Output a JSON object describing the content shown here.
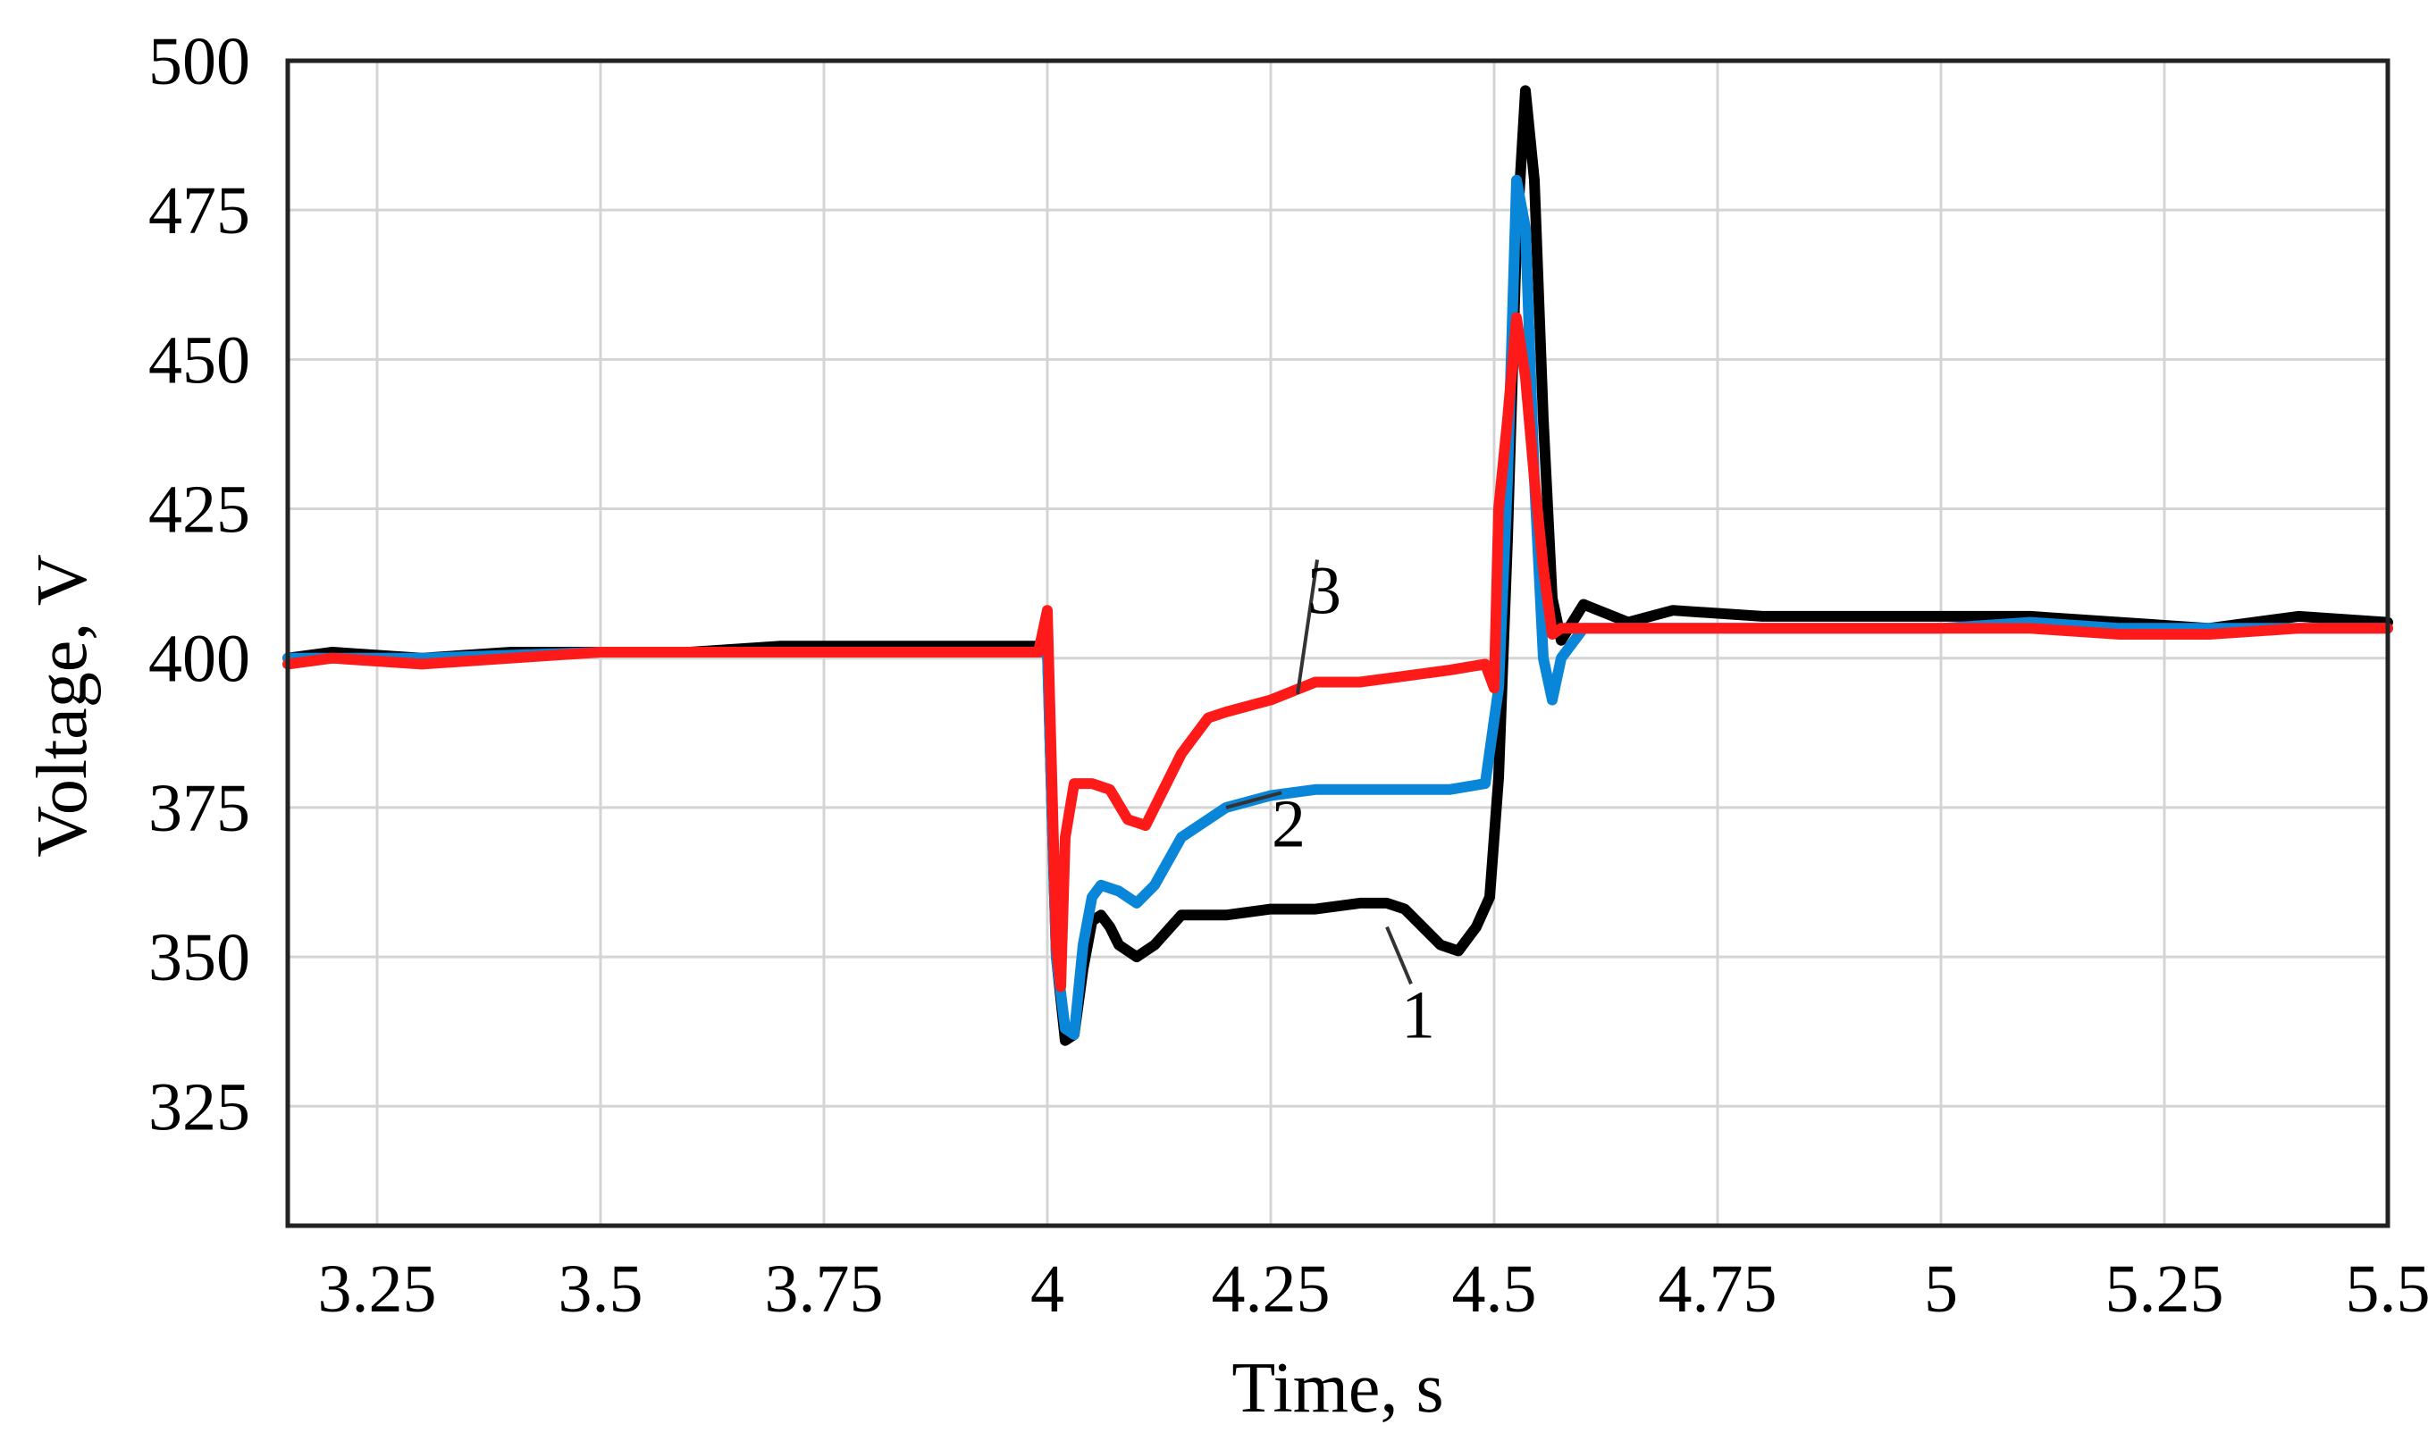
{
  "chart_data": {
    "type": "line",
    "title": "",
    "xlabel": "Time, s",
    "ylabel": "Voltage, V",
    "xlim": [
      3.15,
      5.5
    ],
    "ylim": [
      305,
      500
    ],
    "x_ticks": [
      3.25,
      3.5,
      3.75,
      4,
      4.25,
      4.5,
      4.75,
      5,
      5.25,
      5.5
    ],
    "x_tick_labels": [
      "3.25",
      "3.5",
      "3.75",
      "4",
      "4.25",
      "4.5",
      "4.75",
      "5",
      "5.25",
      "5.5"
    ],
    "y_ticks": [
      325,
      350,
      375,
      400,
      425,
      450,
      475,
      500
    ],
    "y_tick_labels": [
      "325",
      "350",
      "375",
      "400",
      "425",
      "450",
      "475",
      "500"
    ],
    "grid": true,
    "series": [
      {
        "name": "1",
        "color": "#000000",
        "points": [
          [
            3.15,
            400
          ],
          [
            3.2,
            401
          ],
          [
            3.3,
            400
          ],
          [
            3.4,
            401
          ],
          [
            3.5,
            401
          ],
          [
            3.6,
            401
          ],
          [
            3.7,
            402
          ],
          [
            3.8,
            402
          ],
          [
            3.9,
            402
          ],
          [
            3.98,
            402
          ],
          [
            4.0,
            402
          ],
          [
            4.005,
            375
          ],
          [
            4.01,
            350
          ],
          [
            4.02,
            336
          ],
          [
            4.03,
            337
          ],
          [
            4.04,
            348
          ],
          [
            4.05,
            356
          ],
          [
            4.06,
            357
          ],
          [
            4.07,
            355
          ],
          [
            4.08,
            352
          ],
          [
            4.1,
            350
          ],
          [
            4.12,
            352
          ],
          [
            4.15,
            357
          ],
          [
            4.2,
            357
          ],
          [
            4.25,
            358
          ],
          [
            4.3,
            358
          ],
          [
            4.35,
            359
          ],
          [
            4.38,
            359
          ],
          [
            4.4,
            358
          ],
          [
            4.42,
            355
          ],
          [
            4.44,
            352
          ],
          [
            4.46,
            351
          ],
          [
            4.48,
            355
          ],
          [
            4.495,
            360
          ],
          [
            4.505,
            380
          ],
          [
            4.515,
            420
          ],
          [
            4.525,
            470
          ],
          [
            4.535,
            495
          ],
          [
            4.545,
            480
          ],
          [
            4.555,
            440
          ],
          [
            4.565,
            410
          ],
          [
            4.575,
            403
          ],
          [
            4.6,
            409
          ],
          [
            4.65,
            406
          ],
          [
            4.7,
            408
          ],
          [
            4.8,
            407
          ],
          [
            4.9,
            407
          ],
          [
            5.0,
            407
          ],
          [
            5.1,
            407
          ],
          [
            5.2,
            406
          ],
          [
            5.3,
            405
          ],
          [
            5.4,
            407
          ],
          [
            5.5,
            406
          ]
        ]
      },
      {
        "name": "2",
        "color": "#0a86d8",
        "points": [
          [
            3.15,
            400
          ],
          [
            3.3,
            400
          ],
          [
            3.5,
            401
          ],
          [
            3.7,
            401
          ],
          [
            3.9,
            401
          ],
          [
            3.98,
            401
          ],
          [
            4.0,
            401
          ],
          [
            4.005,
            375
          ],
          [
            4.01,
            350
          ],
          [
            4.02,
            338
          ],
          [
            4.03,
            337
          ],
          [
            4.04,
            352
          ],
          [
            4.05,
            360
          ],
          [
            4.06,
            362
          ],
          [
            4.08,
            361
          ],
          [
            4.1,
            359
          ],
          [
            4.12,
            362
          ],
          [
            4.15,
            370
          ],
          [
            4.2,
            375
          ],
          [
            4.25,
            377
          ],
          [
            4.3,
            378
          ],
          [
            4.35,
            378
          ],
          [
            4.4,
            378
          ],
          [
            4.45,
            378
          ],
          [
            4.49,
            379
          ],
          [
            4.505,
            395
          ],
          [
            4.515,
            430
          ],
          [
            4.525,
            480
          ],
          [
            4.535,
            472
          ],
          [
            4.545,
            430
          ],
          [
            4.555,
            400
          ],
          [
            4.565,
            393
          ],
          [
            4.575,
            400
          ],
          [
            4.6,
            405
          ],
          [
            4.7,
            405
          ],
          [
            4.8,
            405
          ],
          [
            4.9,
            405
          ],
          [
            5.0,
            405
          ],
          [
            5.1,
            406
          ],
          [
            5.2,
            405
          ],
          [
            5.3,
            405
          ],
          [
            5.4,
            405
          ],
          [
            5.5,
            405
          ]
        ]
      },
      {
        "name": "3",
        "color": "#ff1a1a",
        "points": [
          [
            3.15,
            399
          ],
          [
            3.2,
            400
          ],
          [
            3.3,
            399
          ],
          [
            3.4,
            400
          ],
          [
            3.5,
            401
          ],
          [
            3.6,
            401
          ],
          [
            3.7,
            401
          ],
          [
            3.8,
            401
          ],
          [
            3.9,
            401
          ],
          [
            3.99,
            401
          ],
          [
            4.0,
            408
          ],
          [
            4.005,
            380
          ],
          [
            4.01,
            352
          ],
          [
            4.015,
            345
          ],
          [
            4.02,
            370
          ],
          [
            4.03,
            379
          ],
          [
            4.05,
            379
          ],
          [
            4.07,
            378
          ],
          [
            4.09,
            373
          ],
          [
            4.11,
            372
          ],
          [
            4.13,
            378
          ],
          [
            4.15,
            384
          ],
          [
            4.18,
            390
          ],
          [
            4.2,
            391
          ],
          [
            4.25,
            393
          ],
          [
            4.3,
            396
          ],
          [
            4.35,
            396
          ],
          [
            4.4,
            397
          ],
          [
            4.45,
            398
          ],
          [
            4.49,
            399
          ],
          [
            4.5,
            395
          ],
          [
            4.505,
            425
          ],
          [
            4.515,
            440
          ],
          [
            4.525,
            457
          ],
          [
            4.535,
            447
          ],
          [
            4.545,
            430
          ],
          [
            4.555,
            415
          ],
          [
            4.565,
            404
          ],
          [
            4.575,
            405
          ],
          [
            4.6,
            405
          ],
          [
            4.7,
            405
          ],
          [
            4.8,
            405
          ],
          [
            4.9,
            405
          ],
          [
            5.0,
            405
          ],
          [
            5.1,
            405
          ],
          [
            5.2,
            404
          ],
          [
            5.3,
            404
          ],
          [
            5.4,
            405
          ],
          [
            5.5,
            405
          ]
        ]
      }
    ],
    "annotations": [
      {
        "text": "1",
        "x": 4.415,
        "y": 338,
        "pointer_to": [
          4.38,
          355
        ]
      },
      {
        "text": "2",
        "x": 4.27,
        "y": 370,
        "pointer_to": [
          4.2,
          375
        ]
      },
      {
        "text": "3",
        "x": 4.31,
        "y": 409,
        "pointer_to": [
          4.28,
          394
        ]
      }
    ]
  }
}
